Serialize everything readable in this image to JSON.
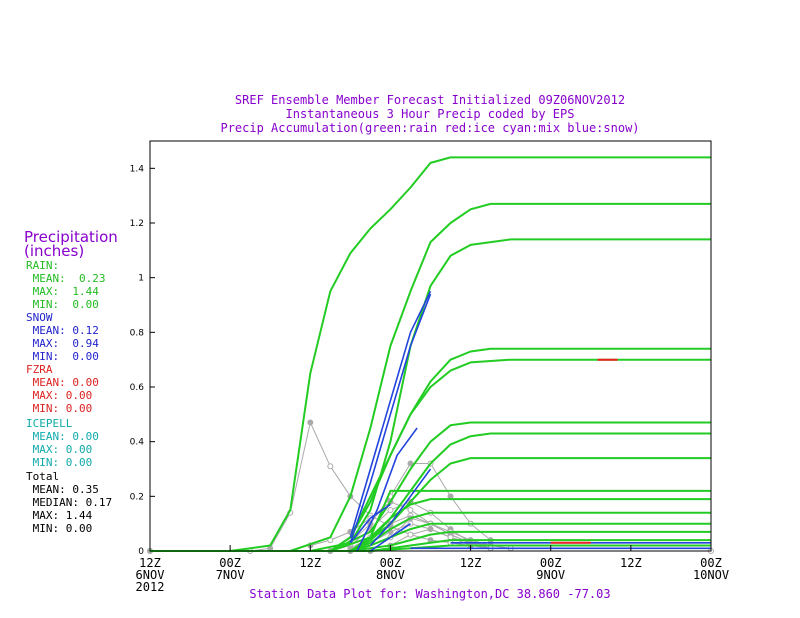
{
  "header": {
    "line1": "SREF Ensemble Member Forecast Initialized 09Z06NOV2012",
    "line2": "Instantaneous 3 Hour Precip coded by EPS",
    "line3": "Precip Accumulation(green:rain red:ice cyan:mix blue:snow)"
  },
  "footer": "Station Data Plot for: Washington,DC 38.860 -77.03",
  "sidebar": {
    "title1": "Precipitation",
    "title2": "(inches)",
    "rain": {
      "label": "RAIN:",
      "mean": " MEAN:  0.23",
      "max": " MAX:  1.44",
      "min": " MIN:  0.00"
    },
    "snow": {
      "label": "SNOW",
      "mean": " MEAN: 0.12",
      "max": " MAX:  0.94",
      "min": " MIN:  0.00"
    },
    "fzra": {
      "label": "FZRA",
      "mean": " MEAN: 0.00",
      "max": " MAX: 0.00",
      "min": " MIN: 0.00"
    },
    "icepell": {
      "label": "ICEPELL",
      "mean": " MEAN: 0.00",
      "max": " MAX: 0.00",
      "min": " MIN: 0.00"
    },
    "total": {
      "label": "Total",
      "mean": " MEAN: 0.35",
      "median": " MEDIAN: 0.17",
      "max": " MAX: 1.44",
      "min": " MIN: 0.00"
    }
  },
  "colors": {
    "rain": "#22cc22",
    "snow": "#2244dd",
    "ice": "#ee2222",
    "total": "#aaaaaa"
  },
  "chart_data": {
    "type": "line",
    "x_unit": "hours after 12Z 6NOV2012",
    "xlim": [
      0,
      84
    ],
    "ylim": [
      0,
      1.5
    ],
    "yticks": [
      0,
      0.2,
      0.4,
      0.6,
      0.8,
      1,
      1.2,
      1.4
    ],
    "ytick_labels": [
      "0",
      "0.2",
      "0.4",
      "0.6",
      "0.8",
      "1",
      "1.2",
      "1.4"
    ],
    "xticks": [
      {
        "x": 0,
        "l1": "12Z",
        "l2": "6NOV",
        "l3": "2012"
      },
      {
        "x": 12,
        "l1": "00Z",
        "l2": "7NOV",
        "l3": ""
      },
      {
        "x": 24,
        "l1": "12Z",
        "l2": "",
        "l3": ""
      },
      {
        "x": 36,
        "l1": "00Z",
        "l2": "8NOV",
        "l3": ""
      },
      {
        "x": 48,
        "l1": "12Z",
        "l2": "",
        "l3": ""
      },
      {
        "x": 60,
        "l1": "00Z",
        "l2": "9NOV",
        "l3": ""
      },
      {
        "x": 72,
        "l1": "12Z",
        "l2": "",
        "l3": ""
      },
      {
        "x": 84,
        "l1": "00Z",
        "l2": "10NOV",
        "l3": ""
      }
    ],
    "rain_series": [
      {
        "x": [
          0,
          12,
          18,
          21,
          24,
          27,
          30,
          33,
          36,
          39,
          42,
          45,
          48,
          84
        ],
        "y": [
          0,
          0,
          0.02,
          0.15,
          0.65,
          0.95,
          1.09,
          1.18,
          1.25,
          1.33,
          1.42,
          1.44,
          1.44,
          1.44
        ]
      },
      {
        "x": [
          0,
          21,
          27,
          30,
          33,
          36,
          39,
          42,
          45,
          48,
          51,
          84
        ],
        "y": [
          0,
          0,
          0.05,
          0.2,
          0.45,
          0.75,
          0.95,
          1.13,
          1.2,
          1.25,
          1.27,
          1.27
        ]
      },
      {
        "x": [
          0,
          24,
          30,
          33,
          36,
          39,
          42,
          45,
          48,
          54,
          84
        ],
        "y": [
          0,
          0,
          0.03,
          0.15,
          0.4,
          0.75,
          0.97,
          1.08,
          1.12,
          1.14,
          1.14
        ]
      },
      {
        "x": [
          0,
          27,
          30,
          33,
          36,
          39,
          42,
          45,
          48,
          51,
          84
        ],
        "y": [
          0,
          0,
          0.05,
          0.2,
          0.35,
          0.5,
          0.62,
          0.7,
          0.73,
          0.74,
          0.74
        ]
      },
      {
        "x": [
          0,
          27,
          30,
          33,
          36,
          39,
          42,
          45,
          48,
          54,
          84
        ],
        "y": [
          0,
          0,
          0.05,
          0.18,
          0.35,
          0.5,
          0.6,
          0.66,
          0.69,
          0.7,
          0.7
        ]
      },
      {
        "x": [
          0,
          27,
          33,
          36,
          39,
          42,
          45,
          48,
          84
        ],
        "y": [
          0,
          0,
          0.07,
          0.18,
          0.3,
          0.4,
          0.46,
          0.47,
          0.47
        ]
      },
      {
        "x": [
          0,
          27,
          33,
          36,
          39,
          42,
          45,
          48,
          51,
          84
        ],
        "y": [
          0,
          0,
          0.05,
          0.12,
          0.22,
          0.32,
          0.39,
          0.42,
          0.43,
          0.43
        ]
      },
      {
        "x": [
          0,
          30,
          33,
          36,
          39,
          42,
          45,
          48,
          84
        ],
        "y": [
          0,
          0,
          0.04,
          0.1,
          0.18,
          0.26,
          0.32,
          0.34,
          0.34
        ]
      },
      {
        "x": [
          0,
          30,
          33,
          36,
          84
        ],
        "y": [
          0,
          0,
          0.05,
          0.22,
          0.22
        ]
      },
      {
        "x": [
          0,
          30,
          33,
          36,
          39,
          42,
          84
        ],
        "y": [
          0,
          0,
          0.04,
          0.12,
          0.17,
          0.19,
          0.19
        ]
      },
      {
        "x": [
          0,
          30,
          33,
          36,
          39,
          42,
          84
        ],
        "y": [
          0,
          0,
          0.03,
          0.08,
          0.12,
          0.14,
          0.14
        ]
      },
      {
        "x": [
          0,
          30,
          33,
          36,
          39,
          42,
          84
        ],
        "y": [
          0,
          0,
          0.02,
          0.05,
          0.08,
          0.1,
          0.1
        ]
      },
      {
        "x": [
          0,
          30,
          36,
          39,
          42,
          45,
          84
        ],
        "y": [
          0,
          0,
          0.02,
          0.04,
          0.06,
          0.07,
          0.07
        ]
      },
      {
        "x": [
          0,
          33,
          36,
          39,
          42,
          45,
          84
        ],
        "y": [
          0,
          0,
          0.01,
          0.02,
          0.03,
          0.04,
          0.04
        ]
      },
      {
        "x": [
          0,
          33,
          39,
          42,
          45,
          84
        ],
        "y": [
          0,
          0,
          0.01,
          0.015,
          0.02,
          0.02
        ]
      }
    ],
    "snow_series": [
      {
        "x": [
          30,
          33,
          36,
          39,
          42
        ],
        "y": [
          0.05,
          0.3,
          0.55,
          0.8,
          0.95
        ]
      },
      {
        "x": [
          30,
          33,
          36,
          39,
          42
        ],
        "y": [
          0.03,
          0.25,
          0.5,
          0.75,
          0.94
        ]
      },
      {
        "x": [
          31,
          34,
          37,
          40
        ],
        "y": [
          0.0,
          0.15,
          0.35,
          0.45
        ]
      },
      {
        "x": [
          33,
          36,
          39,
          42
        ],
        "y": [
          0.02,
          0.1,
          0.2,
          0.3
        ]
      },
      {
        "x": [
          33,
          36,
          39
        ],
        "y": [
          0.0,
          0.05,
          0.1
        ]
      },
      {
        "x": [
          30,
          33,
          36
        ],
        "y": [
          0.03,
          0.12,
          0.17
        ]
      },
      {
        "x": [
          45,
          84
        ],
        "y": [
          0.03,
          0.03
        ]
      },
      {
        "x": [
          39,
          84
        ],
        "y": [
          0.01,
          0.01
        ]
      }
    ],
    "ice_series": [
      {
        "x": [
          67,
          70
        ],
        "y": [
          0.7,
          0.7
        ]
      },
      {
        "x": [
          60,
          66
        ],
        "y": [
          0.03,
          0.03
        ]
      }
    ],
    "total_series": [
      {
        "x": [
          0,
          15,
          18,
          21,
          24,
          27,
          30,
          33,
          36,
          39,
          42,
          45,
          48,
          51
        ],
        "y": [
          0,
          0,
          0.01,
          0.14,
          0.47,
          0.31,
          0.2,
          0.13,
          0.09,
          0.06,
          0.04,
          0.03,
          0.02,
          0.01
        ]
      },
      {
        "x": [
          24,
          27,
          30,
          33,
          36,
          39,
          42,
          45,
          48
        ],
        "y": [
          0.02,
          0.04,
          0.07,
          0.12,
          0.18,
          0.15,
          0.1,
          0.06,
          0.03
        ]
      },
      {
        "x": [
          27,
          30,
          33,
          36,
          39,
          42,
          45,
          48,
          51
        ],
        "y": [
          0.0,
          0.03,
          0.1,
          0.2,
          0.32,
          0.32,
          0.2,
          0.1,
          0.04
        ]
      },
      {
        "x": [
          27,
          30,
          33,
          36,
          39,
          42,
          45,
          48
        ],
        "y": [
          0.0,
          0.02,
          0.08,
          0.15,
          0.18,
          0.14,
          0.08,
          0.03
        ]
      },
      {
        "x": [
          30,
          33,
          36,
          39,
          42,
          45,
          48,
          51
        ],
        "y": [
          0.01,
          0.05,
          0.1,
          0.13,
          0.1,
          0.07,
          0.04,
          0.02
        ]
      },
      {
        "x": [
          30,
          33,
          36,
          39,
          42,
          45,
          48
        ],
        "y": [
          0.0,
          0.03,
          0.07,
          0.1,
          0.08,
          0.05,
          0.02
        ]
      },
      {
        "x": [
          33,
          36,
          39,
          42,
          45,
          48,
          51,
          54
        ],
        "y": [
          0.0,
          0.05,
          0.12,
          0.1,
          0.06,
          0.03,
          0.02,
          0.01
        ]
      },
      {
        "x": [
          36,
          39,
          42,
          45,
          48,
          51
        ],
        "y": [
          0.02,
          0.06,
          0.08,
          0.05,
          0.03,
          0.01
        ]
      },
      {
        "x": [
          0,
          84
        ],
        "y": [
          0.0,
          0.0
        ]
      }
    ]
  }
}
